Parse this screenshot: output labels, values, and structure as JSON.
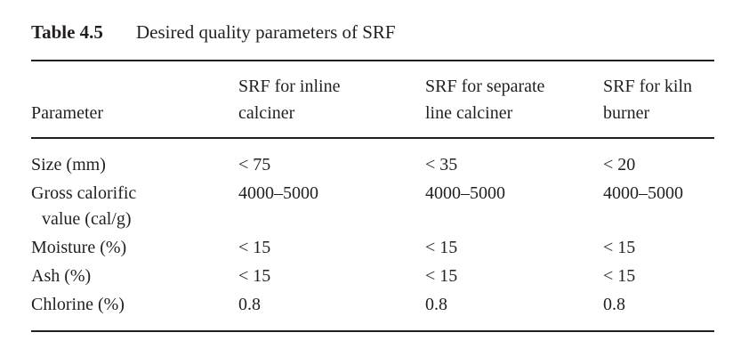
{
  "title": {
    "label": "Table 4.5",
    "caption": "Desired quality parameters of SRF"
  },
  "table": {
    "header": [
      [
        "Parameter"
      ],
      [
        "SRF for inline",
        "calciner"
      ],
      [
        "SRF for separate",
        "line calciner"
      ],
      [
        "SRF for kiln",
        "burner"
      ]
    ],
    "rows": [
      [
        [
          "Size (mm)"
        ],
        [
          "< 75"
        ],
        [
          "< 35"
        ],
        [
          "< 20"
        ]
      ],
      [
        [
          "Gross calorific",
          "value (cal/g)"
        ],
        [
          "4000–5000"
        ],
        [
          "4000–5000"
        ],
        [
          "4000–5000"
        ]
      ],
      [
        [
          "Moisture (%)"
        ],
        [
          "< 15"
        ],
        [
          "< 15"
        ],
        [
          "< 15"
        ]
      ],
      [
        [
          "Ash (%)"
        ],
        [
          "< 15"
        ],
        [
          "< 15"
        ],
        [
          "< 15"
        ]
      ],
      [
        [
          "Chlorine (%)"
        ],
        [
          "0.8"
        ],
        [
          "0.8"
        ],
        [
          "0.8"
        ]
      ]
    ]
  }
}
